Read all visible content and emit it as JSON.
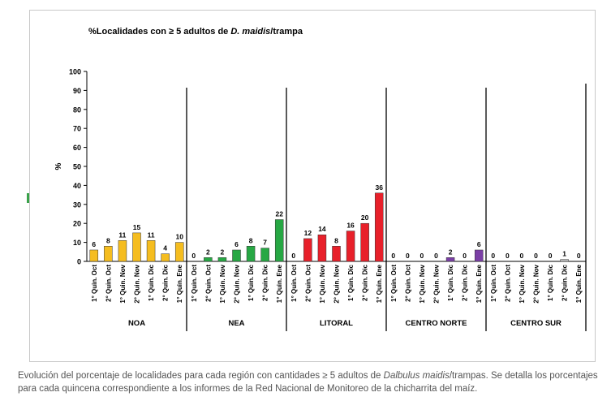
{
  "chart_data": {
    "type": "bar",
    "title": "%Localidades con ≥ 5 adultos de D. maidis/trampa",
    "title_parts": {
      "prefix": "%Localidades con ≥ 5 adultos de ",
      "italic": "D. maidis",
      "suffix": "/trampa"
    },
    "ylabel": "%",
    "xlabel": "",
    "ylim": [
      0,
      100
    ],
    "yticks": [
      0,
      10,
      20,
      30,
      40,
      50,
      60,
      70,
      80,
      90,
      100
    ],
    "grid": false,
    "legend": "none",
    "groups": [
      {
        "name": "NOA",
        "color": "#f5bd1f",
        "categories": [
          "1° Quin. Oct",
          "2° Quin. Oct",
          "1° Quin. Nov",
          "2° Quin. Nov",
          "1° Quin. Dic",
          "2° Quin. Dic",
          "1° Quin. Ene"
        ],
        "values": [
          6,
          8,
          11,
          15,
          11,
          4,
          10
        ]
      },
      {
        "name": "NEA",
        "color": "#27a844",
        "categories": [
          "1° Quin. Oct",
          "2° Quin. Oct",
          "1° Quin. Nov",
          "2° Quin. Nov",
          "1° Quin. Dic",
          "2° Quin. Dic",
          "1° Quin. Ene"
        ],
        "values": [
          0,
          2,
          2,
          6,
          8,
          7,
          22
        ]
      },
      {
        "name": "LITORAL",
        "color": "#e8202a",
        "categories": [
          "1° Quin. Oct",
          "2° Quin. Oct",
          "1° Quin. Nov",
          "2° Quin. Nov",
          "1° Quin. Dic",
          "2° Quin. Dic",
          "1° Quin. Ene"
        ],
        "values": [
          0,
          12,
          14,
          8,
          16,
          20,
          36
        ]
      },
      {
        "name": "CENTRO NORTE",
        "color": "#7b3fa6",
        "categories": [
          "1° Quin. Oct",
          "2° Quin. Oct",
          "1° Quin. Nov",
          "2° Quin. Nov",
          "1° Quin. Dic",
          "2° Quin. Dic",
          "1° Quin. Ene"
        ],
        "values": [
          0,
          0,
          0,
          0,
          2,
          0,
          6
        ]
      },
      {
        "name": "CENTRO SUR",
        "color": "#bfbfbf",
        "categories": [
          "1° Quin. Oct",
          "2° Quin. Oct",
          "1° Quin. Nov",
          "2° Quin. Nov",
          "1° Quin. Dic",
          "2° Quin. Dic",
          "1° Quin. Ene"
        ],
        "values": [
          0,
          0,
          0,
          0,
          0,
          1,
          0
        ]
      }
    ]
  },
  "caption": {
    "prefix": "Evolución del porcentaje de localidades para cada región con cantidades ≥ 5 adultos de ",
    "italic": "Dalbulus maidis",
    "suffix": "/trampas. Se detalla los porcentajes para cada quincena correspondiente a los informes de la Red Nacional de Monitoreo de la chicharrita del maíz."
  }
}
